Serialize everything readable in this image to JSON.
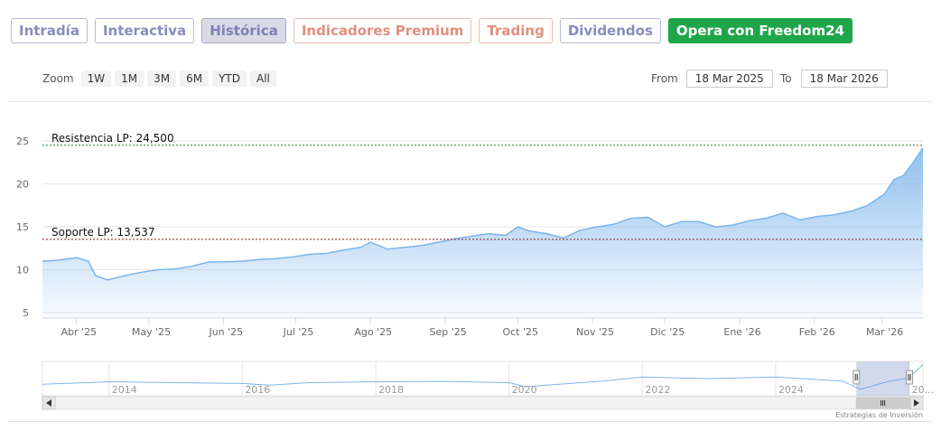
{
  "tabs": [
    {
      "label": "Intradía",
      "style": "violet"
    },
    {
      "label": "Interactiva",
      "style": "violet"
    },
    {
      "label": "Histórica",
      "style": "active"
    },
    {
      "label": "Indicadores Premium",
      "style": "salmon"
    },
    {
      "label": "Trading",
      "style": "salmon"
    },
    {
      "label": "Dividendos",
      "style": "violet"
    },
    {
      "label": "Opera con Freedom24",
      "style": "cta"
    }
  ],
  "zoom": {
    "label": "Zoom",
    "buttons": [
      "1W",
      "1M",
      "3M",
      "6M",
      "YTD",
      "All"
    ]
  },
  "range": {
    "from_label": "From",
    "from_value": "18 Mar 2025",
    "to_label": "To",
    "to_value": "18 Mar 2026"
  },
  "credit": "Estrategias de Inversión",
  "colors": {
    "line": "#7cb5ec",
    "resistance": "#2e7d32",
    "support": "#8b1a1a",
    "navigator_mask": "rgba(102,133,194,0.3)"
  },
  "chart_data": {
    "type": "area",
    "x_range": [
      "2025-03-18",
      "2026-03-18"
    ],
    "ylim": [
      5,
      25
    ],
    "yticks": [
      5,
      10,
      15,
      20,
      25
    ],
    "xticks": [
      {
        "date": "2025-04-01",
        "label": "Abr '25"
      },
      {
        "date": "2025-05-01",
        "label": "May '25"
      },
      {
        "date": "2025-06-01",
        "label": "Jun '25"
      },
      {
        "date": "2025-07-01",
        "label": "Jul '25"
      },
      {
        "date": "2025-08-01",
        "label": "Ago '25"
      },
      {
        "date": "2025-09-01",
        "label": "Sep '25"
      },
      {
        "date": "2025-10-01",
        "label": "Oct '25"
      },
      {
        "date": "2025-11-01",
        "label": "Nov '25"
      },
      {
        "date": "2025-12-01",
        "label": "Dic '25"
      },
      {
        "date": "2026-01-01",
        "label": "Ene '26"
      },
      {
        "date": "2026-02-01",
        "label": "Feb '26"
      },
      {
        "date": "2026-03-01",
        "label": "Mar '26"
      }
    ],
    "series": [
      {
        "x": [
          "2025-03-18",
          "2025-03-24",
          "2025-04-01",
          "2025-04-06",
          "2025-04-09",
          "2025-04-14",
          "2025-04-21",
          "2025-04-28",
          "2025-05-05",
          "2025-05-12",
          "2025-05-19",
          "2025-05-26",
          "2025-06-02",
          "2025-06-09",
          "2025-06-16",
          "2025-06-23",
          "2025-06-30",
          "2025-07-07",
          "2025-07-14",
          "2025-07-21",
          "2025-07-28",
          "2025-08-01",
          "2025-08-08",
          "2025-08-15",
          "2025-08-22",
          "2025-08-29",
          "2025-09-05",
          "2025-09-12",
          "2025-09-19",
          "2025-09-26",
          "2025-10-01",
          "2025-10-06",
          "2025-10-13",
          "2025-10-20",
          "2025-10-27",
          "2025-11-03",
          "2025-11-10",
          "2025-11-17",
          "2025-11-24",
          "2025-12-01",
          "2025-12-08",
          "2025-12-15",
          "2025-12-22",
          "2025-12-29",
          "2026-01-05",
          "2026-01-12",
          "2026-01-19",
          "2026-01-26",
          "2026-02-02",
          "2026-02-09",
          "2026-02-16",
          "2026-02-23",
          "2026-03-02",
          "2026-03-06",
          "2026-03-10",
          "2026-03-14",
          "2026-03-18"
        ],
        "values": [
          11.0,
          11.1,
          11.4,
          11.0,
          9.3,
          8.8,
          9.3,
          9.7,
          10.0,
          10.1,
          10.4,
          10.9,
          10.9,
          11.0,
          11.2,
          11.3,
          11.5,
          11.8,
          11.9,
          12.3,
          12.6,
          13.2,
          12.4,
          12.6,
          12.8,
          13.2,
          13.6,
          13.9,
          14.2,
          14.0,
          15.0,
          14.5,
          14.2,
          13.7,
          14.6,
          15.0,
          15.3,
          16.0,
          16.1,
          15.0,
          15.6,
          15.6,
          15.0,
          15.2,
          15.7,
          16.0,
          16.6,
          15.8,
          16.2,
          16.4,
          16.8,
          17.5,
          18.8,
          20.5,
          21.0,
          22.5,
          24.2
        ]
      }
    ],
    "lines": [
      {
        "label": "Resistencia LP: 24,500",
        "y": 24.5
      },
      {
        "label": "Soporte LP: 13,537",
        "y": 13.537
      }
    ],
    "navigator": {
      "x_range": [
        "2013-01-01",
        "2026-03-18"
      ],
      "xticks": [
        {
          "date": "2014-01-01",
          "label": "2014"
        },
        {
          "date": "2016-01-01",
          "label": "2016"
        },
        {
          "date": "2018-01-01",
          "label": "2018"
        },
        {
          "date": "2020-01-01",
          "label": "2020"
        },
        {
          "date": "2022-01-01",
          "label": "2022"
        },
        {
          "date": "2024-01-01",
          "label": "2024"
        },
        {
          "date": "2026-01-01",
          "label": "20..."
        }
      ],
      "x": [
        "2013-01-01",
        "2014-01-01",
        "2015-01-01",
        "2016-01-01",
        "2016-06-01",
        "2017-01-01",
        "2018-01-01",
        "2019-01-01",
        "2020-01-01",
        "2020-04-01",
        "2021-01-01",
        "2021-06-01",
        "2022-01-01",
        "2023-01-01",
        "2024-01-01",
        "2025-01-01",
        "2025-04-10",
        "2025-09-01",
        "2026-01-01",
        "2026-03-18"
      ],
      "values": [
        12.0,
        13.5,
        13.0,
        12.5,
        11.5,
        13.0,
        13.5,
        13.8,
        13.0,
        10.5,
        12.8,
        14.0,
        16.5,
        15.5,
        16.5,
        14.0,
        9.0,
        13.5,
        16.0,
        24.0
      ],
      "ylim": [
        5,
        26
      ]
    }
  }
}
